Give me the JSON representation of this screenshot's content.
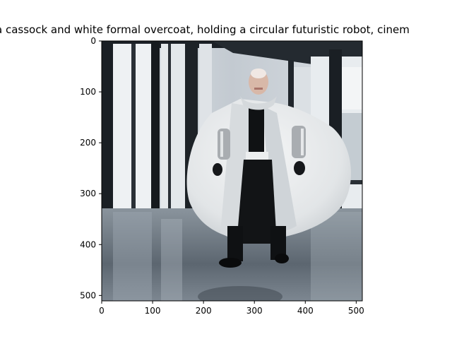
{
  "figure": {
    "title": "a cassock and white formal overcoat, holding a circular futuristic robot, cinem"
  },
  "image": {
    "subject": "bald man in a white circular cape-like overcoat over a black cassock, with robotic silver arms and black gloves, standing in a glass-walled hall with reflective floor",
    "palette": {
      "background_wall": "#c9cfd6",
      "window_frame": "#1a1f24",
      "coat": "#e9ebec",
      "coat_shadow": "#b9bec3",
      "cassock": "#101214",
      "floor": "#6f7a84",
      "skin": "#d8b8a8",
      "robot_arm": "#a9adb1"
    }
  },
  "axes": {
    "x_ticks": [
      "0",
      "100",
      "200",
      "300",
      "400",
      "500"
    ],
    "y_ticks": [
      "0",
      "100",
      "200",
      "300",
      "400",
      "500"
    ]
  }
}
